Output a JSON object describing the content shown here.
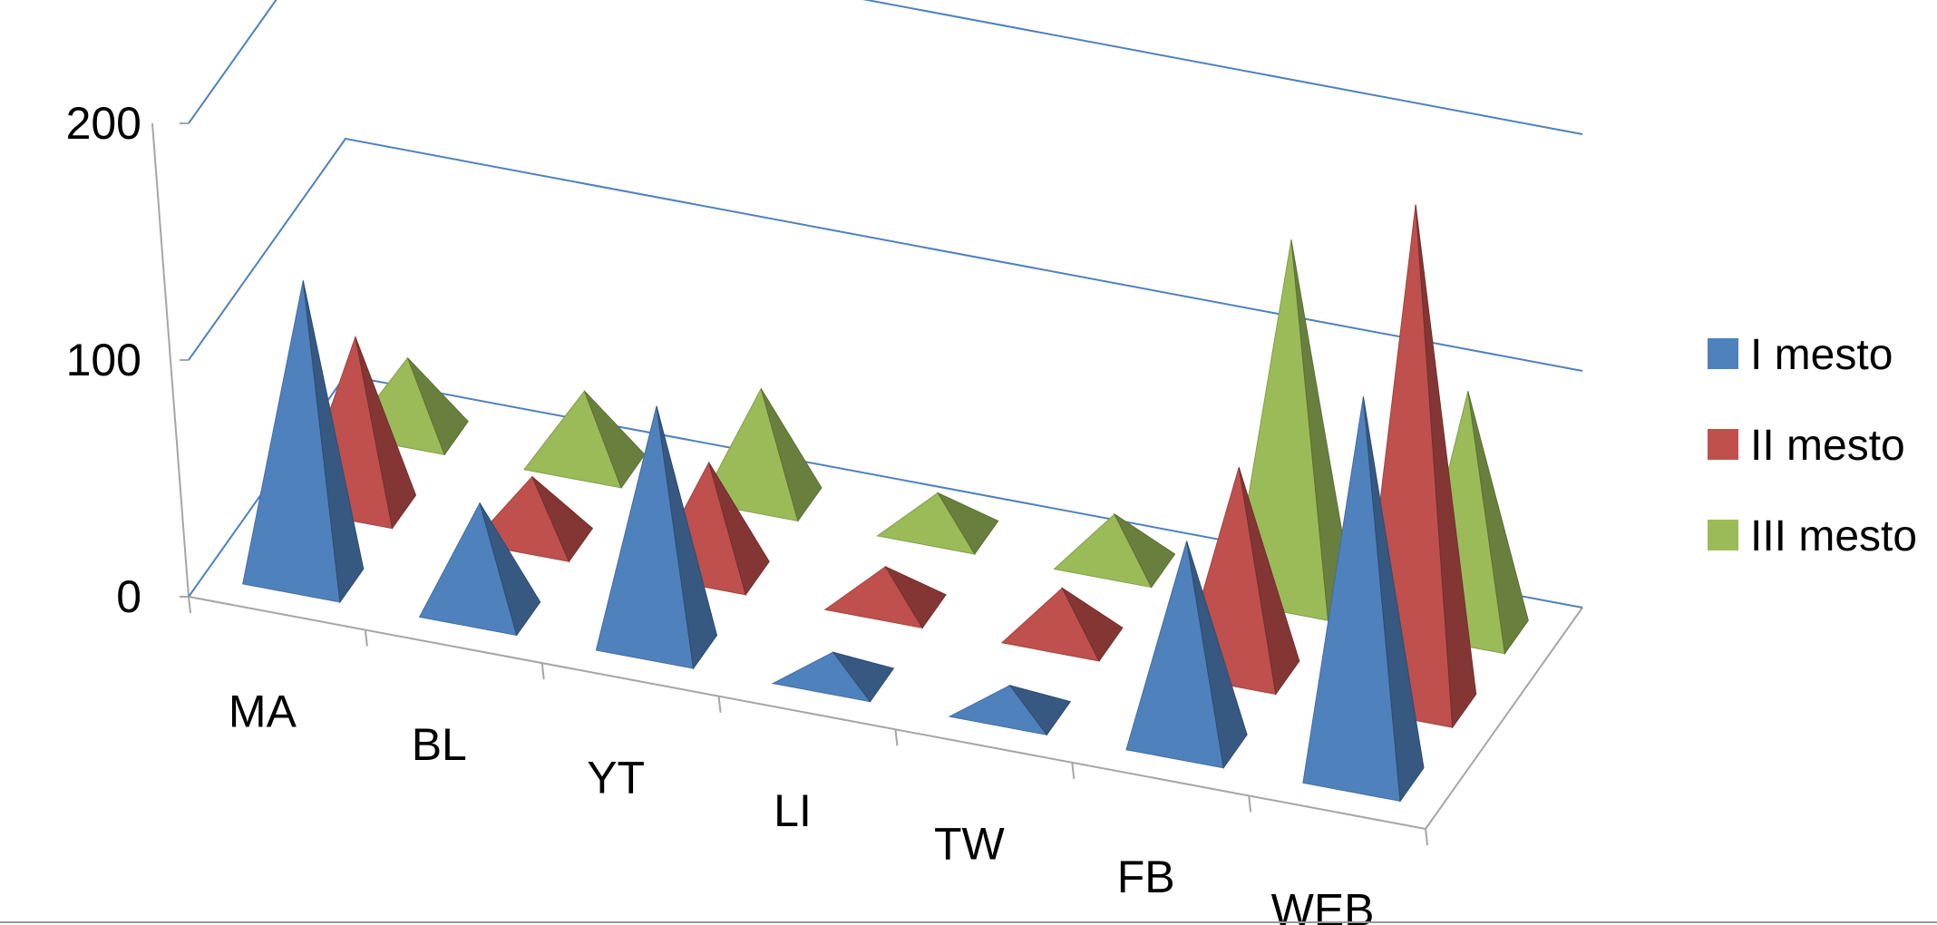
{
  "chart_data": {
    "type": "bar",
    "style": "3d-pyramid",
    "categories": [
      "MA",
      "BL",
      "YT",
      "LI",
      "TW",
      "FB",
      "WEB"
    ],
    "series": [
      {
        "name": "I mesto",
        "color": "#4F81BD",
        "values": [
          125,
          45,
          100,
          10,
          10,
          85,
          160
        ]
      },
      {
        "name": "II mesto",
        "color": "#C0504D",
        "values": [
          70,
          25,
          45,
          15,
          20,
          85,
          210
        ]
      },
      {
        "name": "III mesto",
        "color": "#9BBB59",
        "values": [
          30,
          30,
          45,
          15,
          20,
          150,
          100
        ]
      }
    ],
    "y_ticks": [
      "0",
      "100",
      "200"
    ],
    "ylim": [
      0,
      200
    ],
    "grid": true,
    "legend": "right"
  }
}
